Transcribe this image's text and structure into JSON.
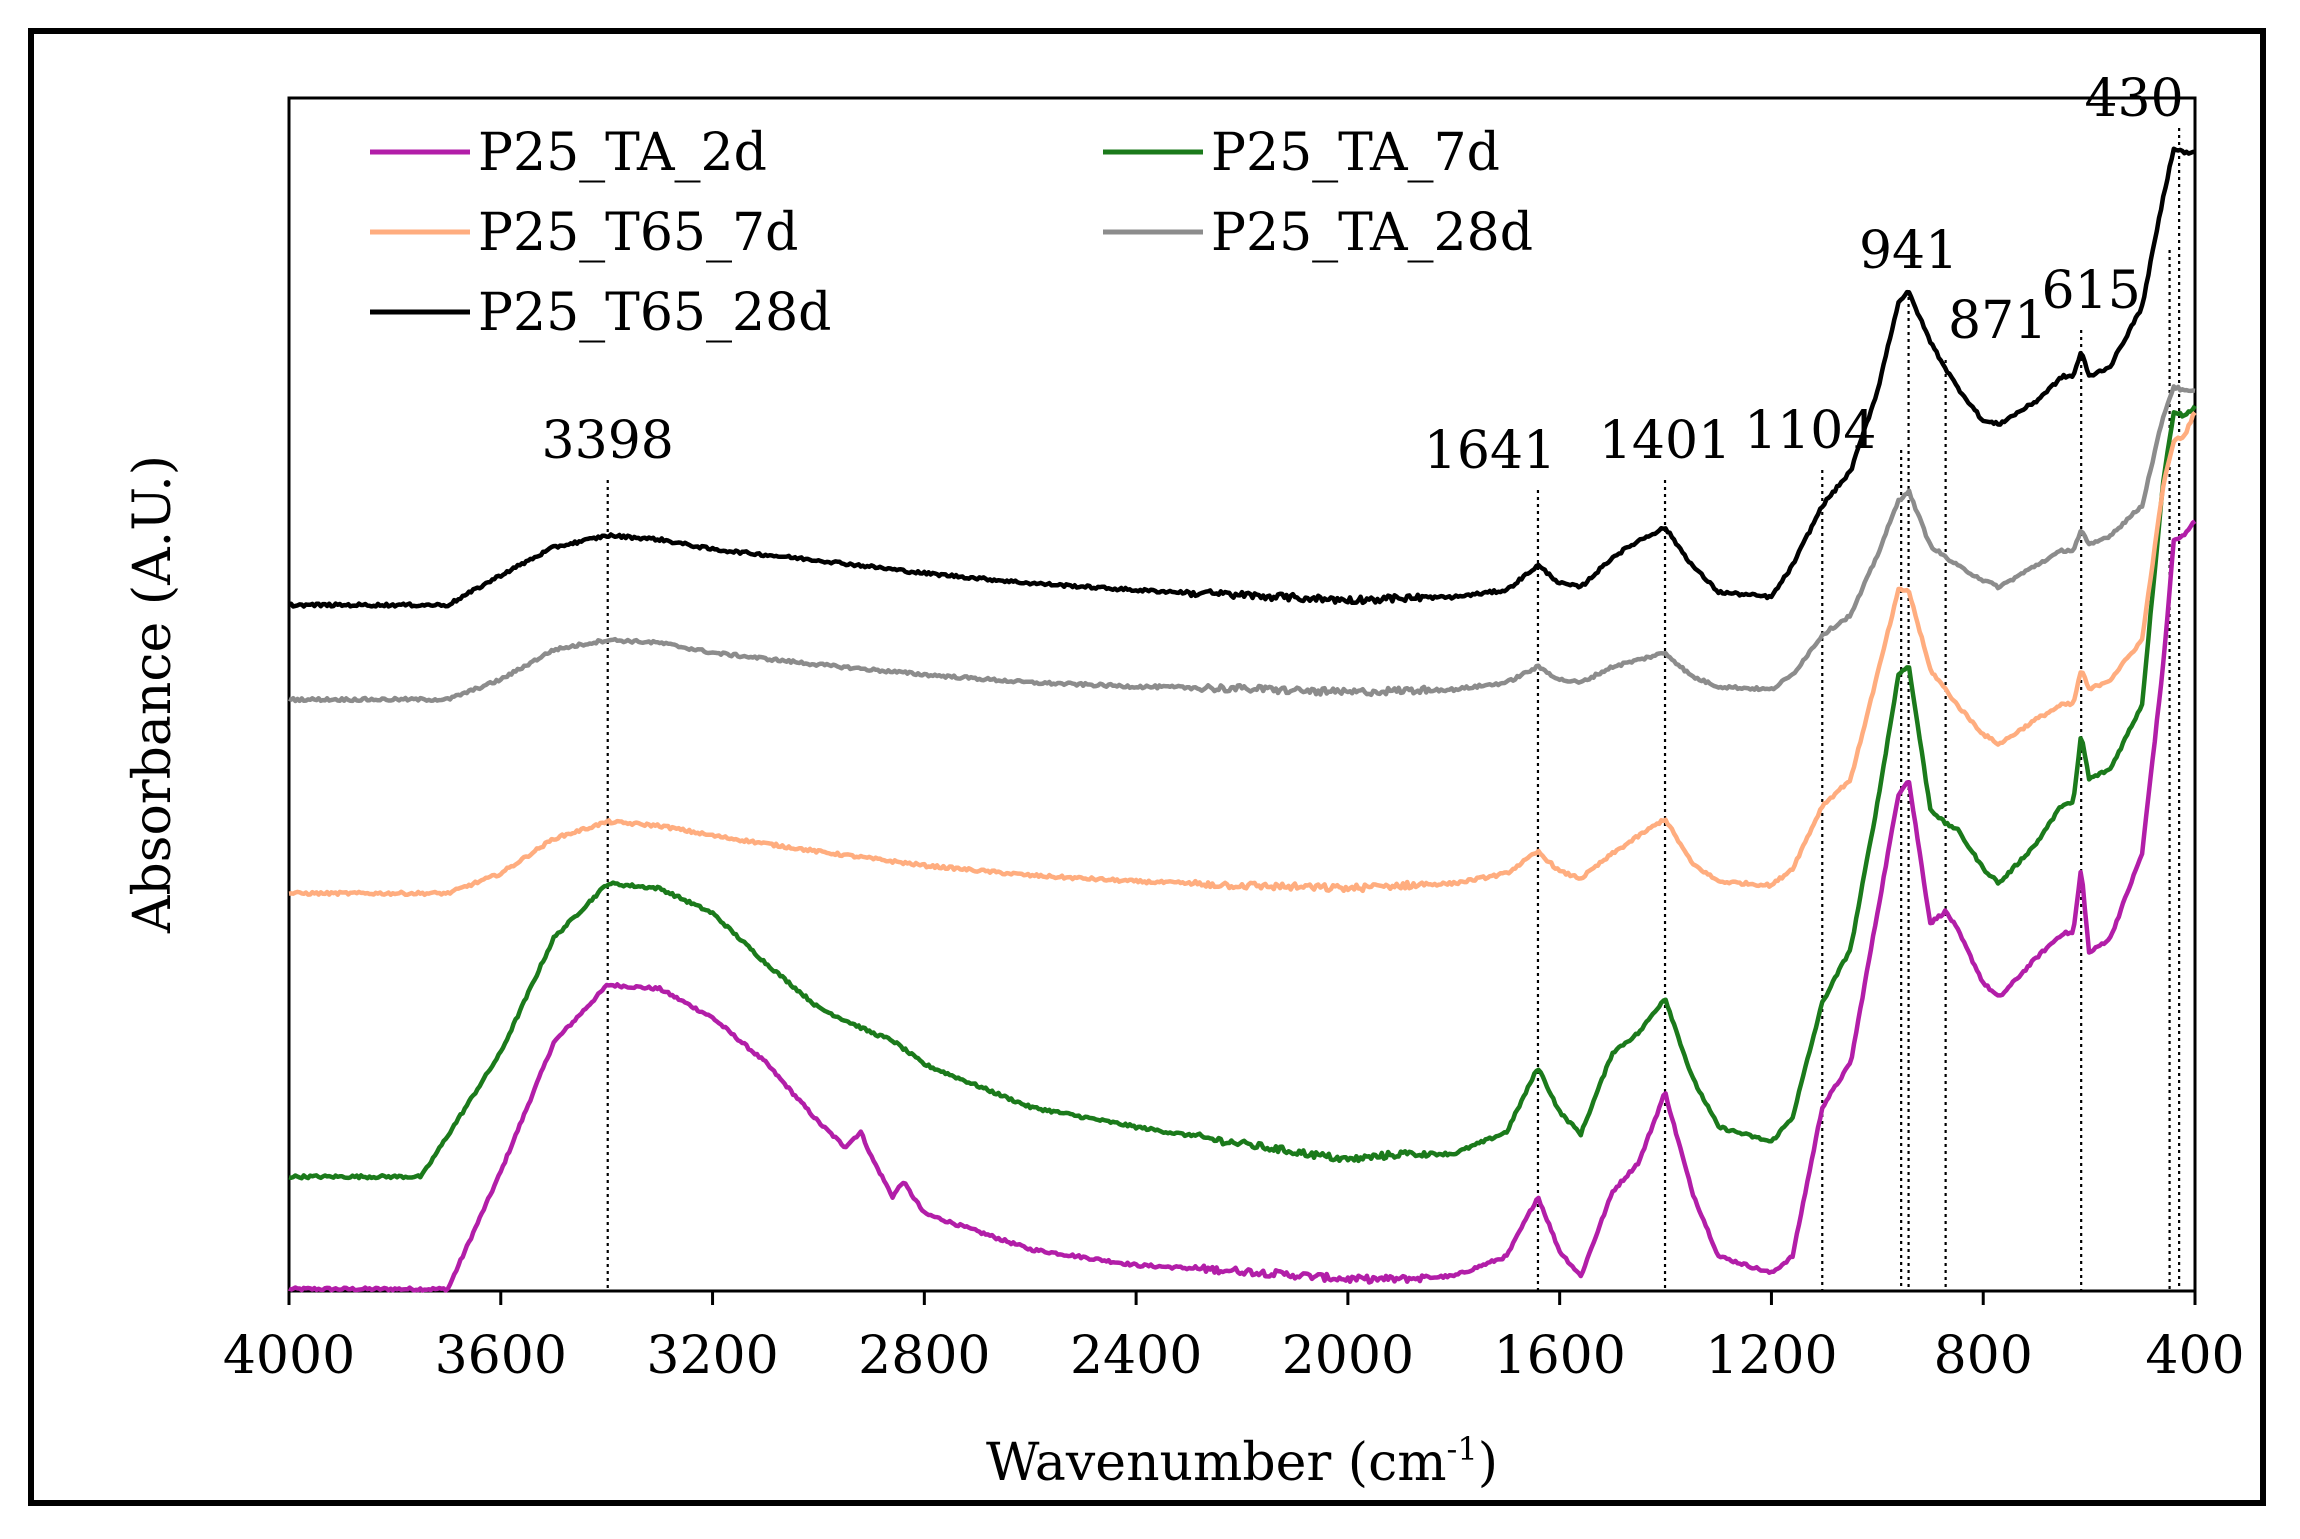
{
  "chart_data": {
    "type": "line",
    "title": "",
    "xlabel": "Wavenumber (cm",
    "xlabel_sup": "-1",
    "xlabel_close": ")",
    "ylabel": "Absorbance (A.U.)",
    "xlim": [
      4000,
      400
    ],
    "ylim": [
      0,
      12
    ],
    "x_ticks": [
      "4000",
      "3600",
      "3200",
      "2800",
      "2400",
      "2000",
      "1600",
      "1200",
      "800",
      "400"
    ],
    "annotations": [
      {
        "x": 3398,
        "label": "3398"
      },
      {
        "x": 1641,
        "label": "1641"
      },
      {
        "x": 1401,
        "label": "1401"
      },
      {
        "x": 1104,
        "label": "1104"
      },
      {
        "x": 941,
        "label": "941"
      },
      {
        "x": 871,
        "label": "871"
      },
      {
        "x": 615,
        "label": "615"
      },
      {
        "x": 430,
        "label": "430"
      }
    ],
    "series": [
      {
        "name": "P25_TA_2d",
        "color": "#b21ea8",
        "points": [
          [
            4000,
            0.02
          ],
          [
            3700,
            0.02
          ],
          [
            3600,
            1.2
          ],
          [
            3500,
            2.5
          ],
          [
            3398,
            3.08
          ],
          [
            3300,
            3.04
          ],
          [
            3200,
            2.75
          ],
          [
            3100,
            2.3
          ],
          [
            3000,
            1.7
          ],
          [
            2950,
            1.45
          ],
          [
            2920,
            1.6
          ],
          [
            2900,
            1.35
          ],
          [
            2860,
            0.95
          ],
          [
            2840,
            1.1
          ],
          [
            2800,
            0.78
          ],
          [
            2600,
            0.42
          ],
          [
            2400,
            0.26
          ],
          [
            2200,
            0.2
          ],
          [
            2000,
            0.12
          ],
          [
            1900,
            0.12
          ],
          [
            1800,
            0.15
          ],
          [
            1700,
            0.35
          ],
          [
            1641,
            0.95
          ],
          [
            1600,
            0.4
          ],
          [
            1560,
            0.15
          ],
          [
            1500,
            1.0
          ],
          [
            1450,
            1.3
          ],
          [
            1401,
            2.0
          ],
          [
            1350,
            1.0
          ],
          [
            1300,
            0.35
          ],
          [
            1200,
            0.18
          ],
          [
            1160,
            0.35
          ],
          [
            1104,
            1.85
          ],
          [
            1050,
            2.3
          ],
          [
            1000,
            3.8
          ],
          [
            960,
            5.0
          ],
          [
            941,
            5.15
          ],
          [
            900,
            3.7
          ],
          [
            871,
            3.82
          ],
          [
            850,
            3.65
          ],
          [
            800,
            3.1
          ],
          [
            770,
            2.95
          ],
          [
            700,
            3.35
          ],
          [
            650,
            3.6
          ],
          [
            630,
            3.6
          ],
          [
            615,
            4.25
          ],
          [
            600,
            3.4
          ],
          [
            560,
            3.55
          ],
          [
            500,
            4.4
          ],
          [
            460,
            6.3
          ],
          [
            440,
            7.55
          ],
          [
            420,
            7.6
          ],
          [
            400,
            7.75
          ]
        ]
      },
      {
        "name": "P25_TA_7d",
        "color": "#1b7a1b",
        "points": [
          [
            4000,
            1.15
          ],
          [
            3750,
            1.15
          ],
          [
            3600,
            2.4
          ],
          [
            3500,
            3.55
          ],
          [
            3398,
            4.1
          ],
          [
            3300,
            4.05
          ],
          [
            3200,
            3.8
          ],
          [
            3100,
            3.3
          ],
          [
            3000,
            2.85
          ],
          [
            2900,
            2.6
          ],
          [
            2860,
            2.52
          ],
          [
            2800,
            2.28
          ],
          [
            2600,
            1.85
          ],
          [
            2400,
            1.65
          ],
          [
            2200,
            1.48
          ],
          [
            2000,
            1.32
          ],
          [
            1900,
            1.38
          ],
          [
            1800,
            1.38
          ],
          [
            1700,
            1.6
          ],
          [
            1641,
            2.25
          ],
          [
            1600,
            1.8
          ],
          [
            1560,
            1.58
          ],
          [
            1500,
            2.4
          ],
          [
            1450,
            2.6
          ],
          [
            1401,
            2.95
          ],
          [
            1350,
            2.15
          ],
          [
            1300,
            1.65
          ],
          [
            1200,
            1.5
          ],
          [
            1160,
            1.75
          ],
          [
            1104,
            2.9
          ],
          [
            1050,
            3.45
          ],
          [
            1000,
            4.9
          ],
          [
            960,
            6.2
          ],
          [
            941,
            6.3
          ],
          [
            900,
            4.85
          ],
          [
            871,
            4.7
          ],
          [
            850,
            4.65
          ],
          [
            800,
            4.25
          ],
          [
            770,
            4.1
          ],
          [
            700,
            4.5
          ],
          [
            650,
            4.9
          ],
          [
            630,
            4.9
          ],
          [
            615,
            5.6
          ],
          [
            600,
            5.15
          ],
          [
            560,
            5.25
          ],
          [
            500,
            5.9
          ],
          [
            460,
            8.15
          ],
          [
            440,
            8.85
          ],
          [
            420,
            8.8
          ],
          [
            400,
            8.9
          ]
        ]
      },
      {
        "name": "P25_T65_7d",
        "color": "#ffad7f",
        "points": [
          [
            4000,
            4.0
          ],
          [
            3700,
            4.0
          ],
          [
            3600,
            4.2
          ],
          [
            3500,
            4.55
          ],
          [
            3398,
            4.72
          ],
          [
            3300,
            4.68
          ],
          [
            3200,
            4.58
          ],
          [
            3000,
            4.42
          ],
          [
            2800,
            4.28
          ],
          [
            2600,
            4.18
          ],
          [
            2400,
            4.12
          ],
          [
            2200,
            4.08
          ],
          [
            2000,
            4.05
          ],
          [
            1900,
            4.08
          ],
          [
            1800,
            4.1
          ],
          [
            1700,
            4.2
          ],
          [
            1641,
            4.42
          ],
          [
            1600,
            4.22
          ],
          [
            1560,
            4.15
          ],
          [
            1500,
            4.4
          ],
          [
            1450,
            4.58
          ],
          [
            1401,
            4.75
          ],
          [
            1350,
            4.3
          ],
          [
            1300,
            4.12
          ],
          [
            1200,
            4.08
          ],
          [
            1160,
            4.25
          ],
          [
            1104,
            4.88
          ],
          [
            1050,
            5.15
          ],
          [
            1000,
            6.2
          ],
          [
            960,
            7.05
          ],
          [
            941,
            7.05
          ],
          [
            900,
            6.25
          ],
          [
            871,
            6.05
          ],
          [
            850,
            5.9
          ],
          [
            800,
            5.6
          ],
          [
            770,
            5.5
          ],
          [
            700,
            5.75
          ],
          [
            650,
            5.9
          ],
          [
            630,
            5.9
          ],
          [
            615,
            6.25
          ],
          [
            600,
            6.05
          ],
          [
            560,
            6.15
          ],
          [
            500,
            6.55
          ],
          [
            460,
            8.1
          ],
          [
            440,
            8.55
          ],
          [
            420,
            8.6
          ],
          [
            400,
            8.85
          ]
        ]
      },
      {
        "name": "P25_TA_28d",
        "color": "#8c8c8c",
        "points": [
          [
            4000,
            5.95
          ],
          [
            3700,
            5.95
          ],
          [
            3600,
            6.15
          ],
          [
            3500,
            6.45
          ],
          [
            3398,
            6.55
          ],
          [
            3300,
            6.52
          ],
          [
            3200,
            6.42
          ],
          [
            3000,
            6.3
          ],
          [
            2800,
            6.2
          ],
          [
            2600,
            6.12
          ],
          [
            2400,
            6.08
          ],
          [
            2200,
            6.06
          ],
          [
            2000,
            6.02
          ],
          [
            1900,
            6.04
          ],
          [
            1800,
            6.05
          ],
          [
            1700,
            6.12
          ],
          [
            1641,
            6.28
          ],
          [
            1600,
            6.15
          ],
          [
            1560,
            6.12
          ],
          [
            1500,
            6.28
          ],
          [
            1450,
            6.35
          ],
          [
            1401,
            6.42
          ],
          [
            1350,
            6.18
          ],
          [
            1300,
            6.08
          ],
          [
            1200,
            6.05
          ],
          [
            1160,
            6.2
          ],
          [
            1104,
            6.6
          ],
          [
            1050,
            6.8
          ],
          [
            1000,
            7.4
          ],
          [
            960,
            7.95
          ],
          [
            941,
            8.05
          ],
          [
            900,
            7.5
          ],
          [
            871,
            7.38
          ],
          [
            850,
            7.3
          ],
          [
            800,
            7.15
          ],
          [
            770,
            7.08
          ],
          [
            700,
            7.3
          ],
          [
            650,
            7.45
          ],
          [
            630,
            7.45
          ],
          [
            615,
            7.65
          ],
          [
            600,
            7.5
          ],
          [
            560,
            7.6
          ],
          [
            500,
            7.9
          ],
          [
            460,
            8.8
          ],
          [
            440,
            9.1
          ],
          [
            420,
            9.05
          ],
          [
            400,
            9.05
          ]
        ]
      },
      {
        "name": "P25_T65_28d",
        "color": "#000000",
        "points": [
          [
            4000,
            6.9
          ],
          [
            3700,
            6.9
          ],
          [
            3600,
            7.2
          ],
          [
            3500,
            7.48
          ],
          [
            3398,
            7.6
          ],
          [
            3300,
            7.56
          ],
          [
            3200,
            7.46
          ],
          [
            3000,
            7.35
          ],
          [
            2800,
            7.22
          ],
          [
            2600,
            7.12
          ],
          [
            2400,
            7.05
          ],
          [
            2200,
            7.0
          ],
          [
            2000,
            6.95
          ],
          [
            1900,
            6.97
          ],
          [
            1800,
            6.98
          ],
          [
            1700,
            7.05
          ],
          [
            1641,
            7.3
          ],
          [
            1600,
            7.12
          ],
          [
            1560,
            7.08
          ],
          [
            1500,
            7.38
          ],
          [
            1450,
            7.55
          ],
          [
            1401,
            7.68
          ],
          [
            1350,
            7.3
          ],
          [
            1300,
            7.03
          ],
          [
            1200,
            6.98
          ],
          [
            1160,
            7.3
          ],
          [
            1104,
            7.9
          ],
          [
            1050,
            8.25
          ],
          [
            1000,
            9.05
          ],
          [
            960,
            9.95
          ],
          [
            941,
            10.05
          ],
          [
            900,
            9.55
          ],
          [
            871,
            9.28
          ],
          [
            850,
            9.1
          ],
          [
            800,
            8.75
          ],
          [
            770,
            8.72
          ],
          [
            700,
            8.95
          ],
          [
            650,
            9.2
          ],
          [
            630,
            9.2
          ],
          [
            615,
            9.45
          ],
          [
            600,
            9.2
          ],
          [
            560,
            9.3
          ],
          [
            500,
            9.9
          ],
          [
            460,
            11.0
          ],
          [
            440,
            11.5
          ],
          [
            420,
            11.45
          ],
          [
            400,
            11.45
          ]
        ]
      }
    ],
    "legend": {
      "placement": "top-left",
      "entries": [
        "P25_TA_2d",
        "P25_TA_7d",
        "P25_T65_7d",
        "P25_TA_28d",
        "P25_T65_28d"
      ]
    }
  }
}
